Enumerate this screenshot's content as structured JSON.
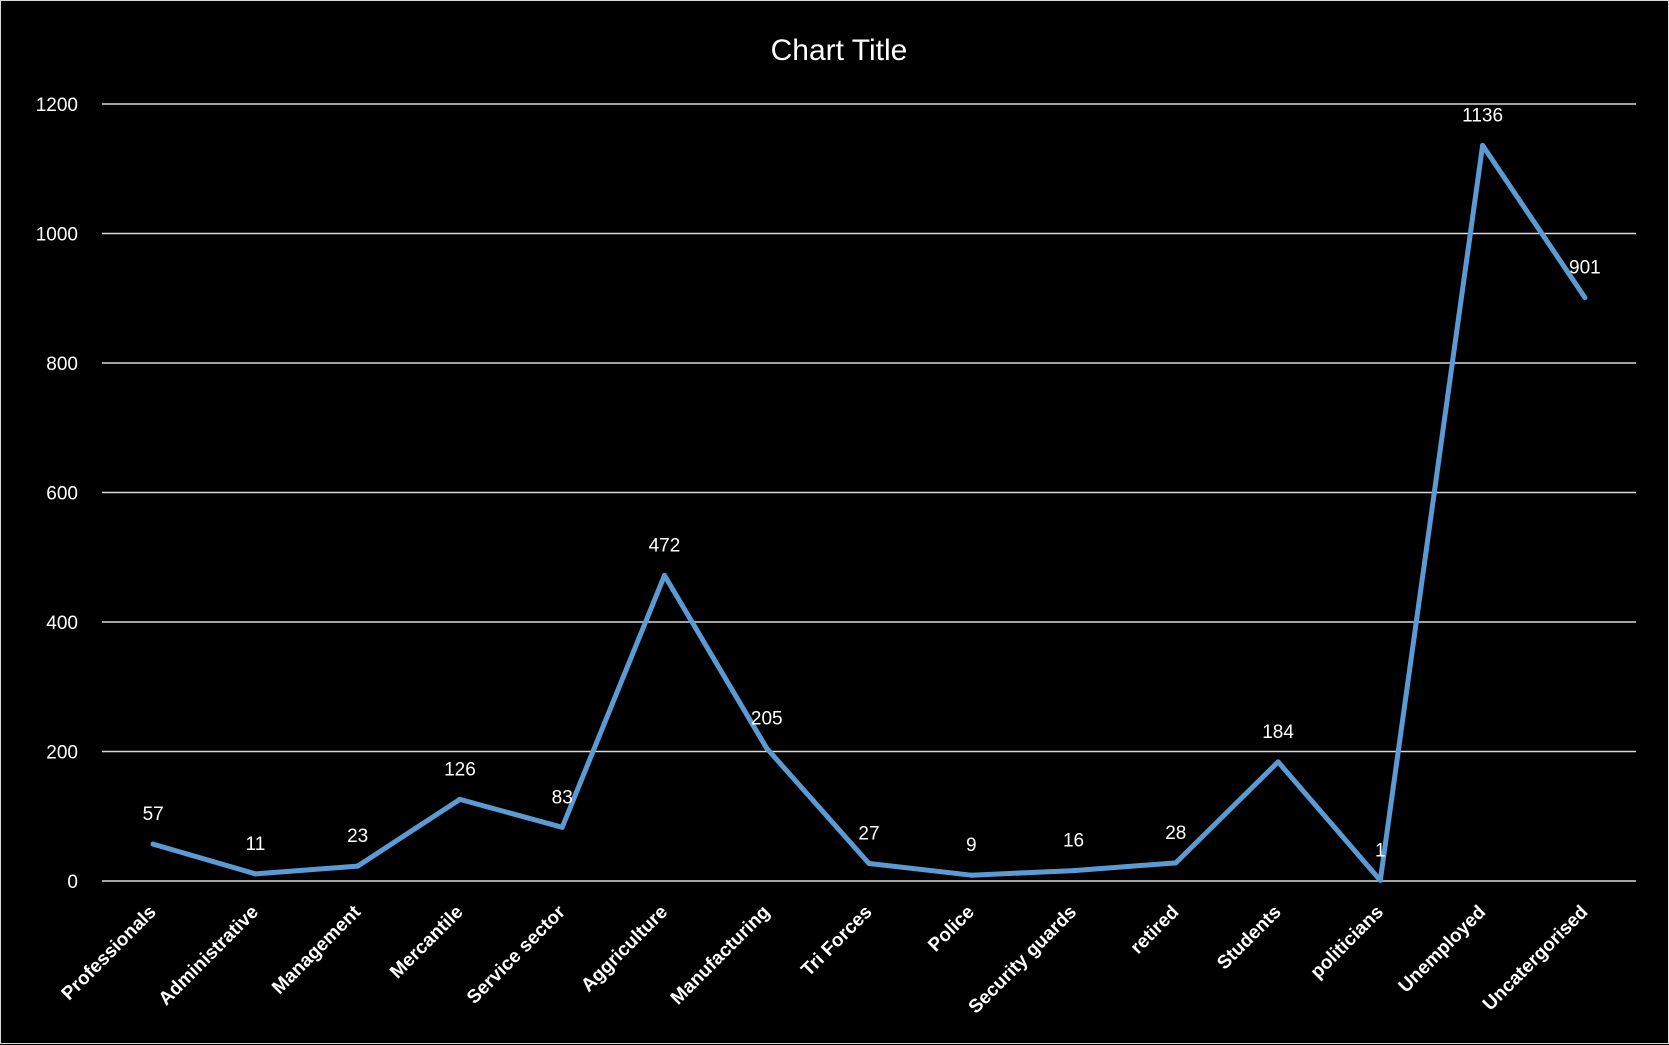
{
  "chart_data": {
    "type": "line",
    "title": "Chart Title",
    "xlabel": "",
    "ylabel": "",
    "ylim": [
      0,
      1200
    ],
    "yticks": [
      0,
      200,
      400,
      600,
      800,
      1000,
      1200
    ],
    "grid": true,
    "legend": "none",
    "line_color": "#5b9bd5",
    "background_color": "#000000",
    "text_color": "#ffffff",
    "categories": [
      "Professionals",
      "Administrative",
      "Management",
      "Mercantile",
      "Service sector",
      "Aggriculture",
      "Manufacturing",
      "Tri Forces",
      "Police",
      "Security guards",
      "retired",
      "Students",
      "politicians",
      "Unemployed",
      "Uncatergorised"
    ],
    "series": [
      {
        "values": [
          57,
          11,
          23,
          126,
          83,
          472,
          205,
          27,
          9,
          16,
          28,
          184,
          1,
          1136,
          901
        ]
      }
    ]
  }
}
